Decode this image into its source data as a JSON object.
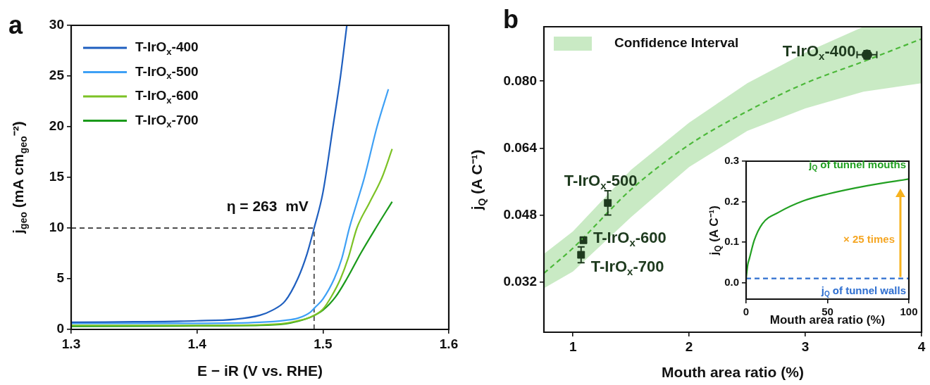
{
  "chart_data": [
    {
      "type": "line",
      "title": "a",
      "xlabel": "E − iR (V vs. RHE)",
      "ylabel": "j$_{geo}$ (mA cm$_{geo}$⁻²)",
      "xlim": [
        1.3,
        1.6
      ],
      "xticks": [
        1.3,
        1.4,
        1.5,
        1.6
      ],
      "ylim": [
        0,
        30
      ],
      "yticks": [
        0,
        5,
        10,
        15,
        20,
        25,
        30
      ],
      "grid": false,
      "legend": "top left",
      "marker": "none",
      "ref_lines": [
        {
          "axis": "y",
          "value": 10,
          "color": "#4d4d4d",
          "line_style": "dashed"
        },
        {
          "axis": "x",
          "value": 1.493,
          "color": "#4d4d4d",
          "line_style": "dashed"
        }
      ],
      "annotations": [
        {
          "text": "η = 263  mV",
          "x": 1.493,
          "y": 10
        }
      ],
      "series": [
        {
          "name": "T-IrO$_{x}$-400",
          "color": "#1f5fbf",
          "x": [
            1.3,
            1.35,
            1.4,
            1.43,
            1.45,
            1.46,
            1.47,
            1.48,
            1.487,
            1.493,
            1.5,
            1.508,
            1.514,
            1.519
          ],
          "values": [
            0.7,
            0.75,
            0.85,
            1.0,
            1.4,
            1.9,
            2.8,
            5,
            7.3,
            10,
            13.5,
            20,
            25,
            30
          ]
        },
        {
          "name": "T-IrO$_{x}$-500",
          "color": "#3ea0f5",
          "x": [
            1.3,
            1.4,
            1.45,
            1.47,
            1.48,
            1.49,
            1.494,
            1.5,
            1.509,
            1.515,
            1.521,
            1.527,
            1.533,
            1.543,
            1.552
          ],
          "values": [
            0.6,
            0.6,
            0.7,
            0.9,
            1.1,
            1.7,
            2.2,
            3,
            5,
            7,
            10,
            12.5,
            15,
            20,
            23.7
          ]
        },
        {
          "name": "T-IrO$_{x}$-600",
          "color": "#7cc225",
          "x": [
            1.3,
            1.4,
            1.45,
            1.47,
            1.48,
            1.49,
            1.5,
            1.507,
            1.514,
            1.52,
            1.527,
            1.537,
            1.547,
            1.555
          ],
          "values": [
            0.4,
            0.4,
            0.45,
            0.6,
            0.85,
            1.2,
            2,
            3.3,
            5,
            7,
            10,
            12.5,
            15,
            17.8
          ]
        },
        {
          "name": "T-IrO$_{x}$-700",
          "color": "#1a9a1a",
          "x": [
            1.3,
            1.4,
            1.45,
            1.47,
            1.48,
            1.49,
            1.5,
            1.51,
            1.519,
            1.53,
            1.542,
            1.555
          ],
          "values": [
            0.3,
            0.35,
            0.4,
            0.55,
            0.8,
            1.2,
            1.9,
            3.2,
            5,
            7.5,
            10,
            12.6
          ]
        }
      ]
    },
    {
      "type": "scatter",
      "title": "b",
      "xlabel": "Mouth area ratio (%)",
      "ylabel": "j$_{Q}$ (A C⁻¹)",
      "xlim": [
        0.75,
        4
      ],
      "xticks": [
        1,
        2,
        3,
        4
      ],
      "ylim": [
        0.02,
        0.093
      ],
      "yticks": [
        0.032,
        0.048,
        0.064,
        {
          "value": 0.08,
          "label": "0.080"
        }
      ],
      "grid": false,
      "legend": "top left",
      "series": [
        {
          "name": "Confidence Interval",
          "type": "line",
          "line_style": "dashed",
          "marker": "none",
          "color": "#4cb83a",
          "x": [
            0.75,
            1,
            1.5,
            2,
            2.5,
            3,
            3.5,
            4
          ],
          "values": [
            0.0341,
            0.0401,
            0.0541,
            0.0648,
            0.0728,
            0.0795,
            0.0847,
            0.0901
          ],
          "lower": [
            0.0305,
            0.0345,
            0.0475,
            0.0595,
            0.0681,
            0.0735,
            0.0775,
            0.0795
          ],
          "upper": [
            0.0387,
            0.0441,
            0.0588,
            0.0701,
            0.0795,
            0.0868,
            0.093,
            0.093
          ]
        },
        {
          "name": "T-IrO$_{x}$-400",
          "marker": "circle",
          "color": "#1e3a1e",
          "x": [
            3.53
          ],
          "values": [
            0.0863
          ],
          "errors": [
            0.001
          ],
          "xerrors": [
            0.085
          ]
        },
        {
          "name": "T-IrO$_{x}$-500",
          "marker": "square",
          "color": "#1e3a1e",
          "x": [
            1.3
          ],
          "values": [
            0.0509
          ],
          "errors": [
            0.0029
          ],
          "xerrors": [
            null
          ]
        },
        {
          "name": "T-IrO$_{x}$-600",
          "marker": "square",
          "color": "#1e3a1e",
          "x": [
            1.09
          ],
          "values": [
            0.042
          ],
          "errors": [
            0.0007
          ],
          "xerrors": [
            null
          ]
        },
        {
          "name": "T-IrO$_{x}$-700",
          "marker": "square",
          "color": "#1e3a1e",
          "x": [
            1.07
          ],
          "values": [
            0.0385
          ],
          "errors": [
            0.0019
          ],
          "xerrors": [
            null
          ]
        }
      ]
    },
    {
      "type": "line",
      "xlabel": "Mouth area ratio (%)",
      "ylabel": "j$_{Q}$ (A C⁻¹)",
      "xlim": [
        0,
        100
      ],
      "xticks": [
        0,
        50,
        100
      ],
      "ylim": [
        -0.04,
        0.3
      ],
      "yticks": [
        {
          "value": 0,
          "label": "0.0"
        },
        0.1,
        0.2,
        0.3
      ],
      "grid": false,
      "marker": "none",
      "annotations": [
        "× 25 times"
      ],
      "series": [
        {
          "name": "j$_{Q}$ of tunnel mouths",
          "color": "#22a022",
          "x": [
            0,
            1,
            2,
            5,
            10,
            20,
            35,
            50,
            75,
            100
          ],
          "values": [
            0.012,
            0.045,
            0.06,
            0.105,
            0.146,
            0.174,
            0.202,
            0.219,
            0.24,
            0.256
          ]
        },
        {
          "name": "j$_{Q}$ of tunnel walls",
          "color": "#2f6fd0",
          "line_style": "dashed",
          "x": [
            0,
            100
          ],
          "values": [
            0.011,
            0.011
          ]
        }
      ]
    }
  ]
}
